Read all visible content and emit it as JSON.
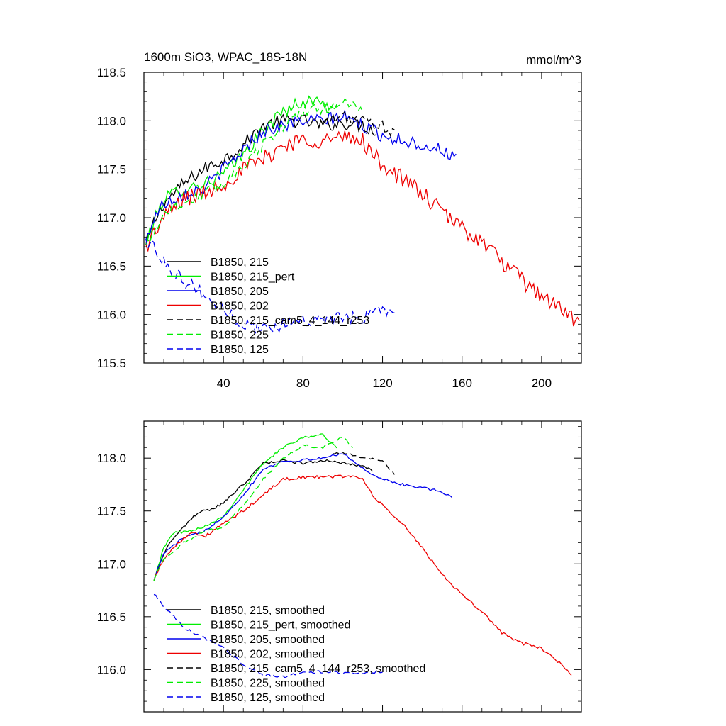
{
  "chart_data": [
    {
      "type": "line",
      "title": "1600m SiO3, WPAC_18S-18N",
      "units": "mmol/m^3",
      "xlim": [
        0,
        220
      ],
      "ylim": [
        115.5,
        118.5
      ],
      "xticks": [
        40,
        80,
        120,
        160,
        200
      ],
      "yticks": [
        115.5,
        116.0,
        116.5,
        117.0,
        117.5,
        118.0,
        118.5
      ],
      "xtick_labels": [
        "40",
        "80",
        "120",
        "160",
        "200"
      ],
      "ytick_labels": [
        "115.5",
        "116.0",
        "116.5",
        "117.0",
        "117.5",
        "118.0",
        "118.5"
      ],
      "series": [
        {
          "name": "B1850, 215",
          "color": "#000000",
          "dash": "solid",
          "noise": 0.07,
          "x": [
            1,
            5,
            10,
            20,
            30,
            40,
            50,
            60,
            70,
            80,
            90,
            100,
            110,
            117
          ],
          "values": [
            116.7,
            116.95,
            117.15,
            117.35,
            117.5,
            117.6,
            117.75,
            117.95,
            118.0,
            118.0,
            117.95,
            117.98,
            117.95,
            117.9
          ]
        },
        {
          "name": "B1850, 215_pert",
          "color": "#00ee00",
          "dash": "solid",
          "noise": 0.07,
          "x": [
            1,
            5,
            10,
            20,
            30,
            40,
            50,
            60,
            70,
            80,
            90,
            97
          ],
          "values": [
            116.75,
            116.95,
            117.2,
            117.3,
            117.35,
            117.45,
            117.65,
            117.9,
            118.1,
            118.2,
            118.2,
            118.1
          ]
        },
        {
          "name": "B1850, 205",
          "color": "#0000ee",
          "dash": "solid",
          "noise": 0.07,
          "x": [
            1,
            5,
            10,
            20,
            30,
            40,
            50,
            60,
            70,
            80,
            90,
            100,
            110,
            120,
            130,
            140,
            150,
            157
          ],
          "values": [
            116.75,
            117.0,
            117.15,
            117.25,
            117.3,
            117.5,
            117.7,
            117.9,
            117.95,
            118.0,
            118.0,
            118.05,
            117.95,
            117.85,
            117.8,
            117.75,
            117.7,
            117.6
          ]
        },
        {
          "name": "B1850, 202",
          "color": "#ee0000",
          "dash": "solid",
          "noise": 0.09,
          "x": [
            1,
            10,
            20,
            30,
            40,
            50,
            60,
            70,
            80,
            90,
            100,
            110,
            115,
            120,
            130,
            140,
            150,
            160,
            170,
            180,
            190,
            200,
            210,
            219
          ],
          "values": [
            116.7,
            117.0,
            117.2,
            117.25,
            117.35,
            117.5,
            117.6,
            117.75,
            117.8,
            117.8,
            117.82,
            117.8,
            117.65,
            117.55,
            117.4,
            117.25,
            117.05,
            116.9,
            116.75,
            116.55,
            116.35,
            116.2,
            116.05,
            115.9
          ]
        },
        {
          "name": "B1850, 215_cam5_4_144_r253",
          "color": "#000000",
          "dash": "dashed",
          "noise": 0.06,
          "x": [
            90,
            100,
            110,
            120,
            126
          ],
          "values": [
            117.98,
            118.05,
            118.0,
            117.95,
            117.85
          ]
        },
        {
          "name": "B1850, 225",
          "color": "#00ee00",
          "dash": "dashed",
          "noise": 0.06,
          "x": [
            1,
            10,
            20,
            30,
            40,
            50,
            60,
            70,
            80,
            90,
            100,
            110
          ],
          "values": [
            116.7,
            117.05,
            117.15,
            117.25,
            117.35,
            117.55,
            117.75,
            117.95,
            118.1,
            118.12,
            118.2,
            118.1
          ]
        },
        {
          "name": "B1850, 125",
          "color": "#0000ee",
          "dash": "dashed",
          "noise": 0.07,
          "x": [
            1,
            5,
            10,
            15,
            20,
            25,
            30,
            40,
            50,
            60,
            70,
            80,
            90,
            100,
            110,
            120,
            126
          ],
          "values": [
            116.75,
            116.7,
            116.55,
            116.45,
            116.35,
            116.3,
            116.2,
            116.05,
            115.9,
            115.85,
            115.9,
            115.95,
            115.95,
            115.95,
            115.98,
            116.05,
            116.05
          ]
        }
      ]
    },
    {
      "type": "line",
      "title": "",
      "units": "",
      "xlim": [
        0,
        220
      ],
      "ylim": [
        115.6,
        118.35
      ],
      "xticks": [
        40,
        80,
        120,
        160,
        200
      ],
      "yticks": [
        116.0,
        116.5,
        117.0,
        117.5,
        118.0
      ],
      "xtick_labels": [],
      "ytick_labels": [
        "116.0",
        "116.5",
        "117.0",
        "117.5",
        "118.0"
      ],
      "series": [
        {
          "name": "B1850, 215, smoothed",
          "color": "#000000",
          "dash": "solid",
          "noise": 0.012,
          "x": [
            5,
            10,
            15,
            20,
            25,
            30,
            35,
            40,
            50,
            60,
            70,
            80,
            90,
            100,
            110,
            115
          ],
          "values": [
            116.85,
            117.1,
            117.25,
            117.35,
            117.45,
            117.5,
            117.52,
            117.58,
            117.75,
            117.95,
            117.98,
            117.95,
            117.98,
            117.95,
            117.93,
            117.88
          ]
        },
        {
          "name": "B1850, 215_pert, smoothed",
          "color": "#00ee00",
          "dash": "solid",
          "noise": 0.012,
          "x": [
            5,
            10,
            15,
            20,
            30,
            40,
            50,
            60,
            70,
            80,
            90,
            97
          ],
          "values": [
            116.85,
            117.15,
            117.3,
            117.3,
            117.35,
            117.45,
            117.7,
            117.95,
            118.1,
            118.2,
            118.22,
            118.1
          ]
        },
        {
          "name": "B1850, 205, smoothed",
          "color": "#0000ee",
          "dash": "solid",
          "noise": 0.012,
          "x": [
            5,
            10,
            20,
            30,
            40,
            50,
            60,
            70,
            80,
            90,
            100,
            110,
            120,
            130,
            140,
            150,
            155
          ],
          "values": [
            116.85,
            117.1,
            117.25,
            117.3,
            117.45,
            117.65,
            117.9,
            117.97,
            117.98,
            118.0,
            118.05,
            117.9,
            117.8,
            117.75,
            117.72,
            117.68,
            117.62
          ]
        },
        {
          "name": "B1850, 202, smoothed",
          "color": "#ee0000",
          "dash": "solid",
          "noise": 0.015,
          "x": [
            5,
            10,
            20,
            25,
            30,
            40,
            50,
            60,
            70,
            80,
            90,
            100,
            105,
            110,
            115,
            120,
            130,
            140,
            150,
            160,
            170,
            180,
            190,
            200,
            210,
            215
          ],
          "values": [
            116.85,
            117.05,
            117.25,
            117.3,
            117.25,
            117.38,
            117.5,
            117.65,
            117.8,
            117.82,
            117.82,
            117.83,
            117.83,
            117.8,
            117.65,
            117.55,
            117.38,
            117.15,
            116.9,
            116.7,
            116.55,
            116.35,
            116.25,
            116.2,
            116.05,
            115.95
          ]
        },
        {
          "name": "B1850, 215_cam5_4_144_r253, smoothed",
          "color": "#000000",
          "dash": "dashed",
          "noise": 0.01,
          "x": [
            95,
            100,
            110,
            120,
            126
          ],
          "values": [
            118.05,
            118.05,
            118.0,
            117.98,
            117.85
          ]
        },
        {
          "name": "B1850, 225, smoothed",
          "color": "#00ee00",
          "dash": "dashed",
          "noise": 0.012,
          "x": [
            5,
            10,
            20,
            30,
            40,
            50,
            60,
            70,
            80,
            90,
            100,
            105
          ],
          "values": [
            116.85,
            117.05,
            117.2,
            117.3,
            117.35,
            117.55,
            117.8,
            118.0,
            118.12,
            118.1,
            118.2,
            118.1
          ]
        },
        {
          "name": "B1850, 125, smoothed",
          "color": "#0000ee",
          "dash": "dashed",
          "noise": 0.012,
          "x": [
            5,
            10,
            15,
            20,
            25,
            30,
            40,
            50,
            60,
            70,
            80,
            90,
            100,
            110,
            120
          ],
          "values": [
            116.72,
            116.6,
            116.5,
            116.4,
            116.35,
            116.3,
            116.2,
            116.05,
            115.95,
            115.93,
            115.97,
            115.98,
            115.97,
            115.97,
            115.98
          ]
        }
      ]
    }
  ]
}
